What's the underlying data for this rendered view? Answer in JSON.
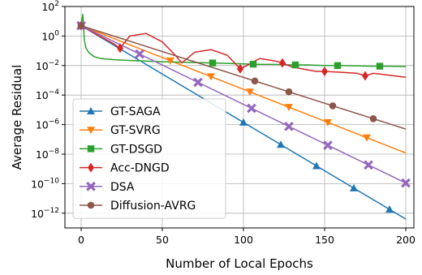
{
  "chart_data": {
    "type": "line",
    "xlabel": "Number of Local Epochs",
    "ylabel": "Average Residual",
    "xlim": [
      -10,
      205
    ],
    "ylim_log10": [
      -13,
      2
    ],
    "yscale": "log",
    "grid": true,
    "legend_position": "lower-left",
    "x_ticks": [
      0,
      50,
      100,
      150,
      200
    ],
    "y_ticks": [
      {
        "base": "10",
        "exp": "2",
        "value": 100
      },
      {
        "base": "10",
        "exp": "0",
        "value": 1
      },
      {
        "base": "10",
        "exp": "−2",
        "value": 0.01
      },
      {
        "base": "10",
        "exp": "−4",
        "value": 0.0001
      },
      {
        "base": "10",
        "exp": "−6",
        "value": 1e-06
      },
      {
        "base": "10",
        "exp": "−8",
        "value": 1e-08
      },
      {
        "base": "10",
        "exp": "−10",
        "value": 1e-10
      },
      {
        "base": "10",
        "exp": "−12",
        "value": 1e-12
      }
    ],
    "series": [
      {
        "name": "GT-SAGA",
        "color": "#1f77b4",
        "marker": "triangle-up",
        "x": [
          0,
          200
        ],
        "y": [
          5,
          4e-13
        ],
        "marker_x": [
          0,
          100,
          123,
          145,
          168,
          190
        ]
      },
      {
        "name": "GT-SVRG",
        "color": "#ff7f0e",
        "marker": "triangle-down",
        "x": [
          0,
          200
        ],
        "y": [
          5,
          1.2e-08
        ],
        "marker_x": [
          0,
          55,
          80,
          104,
          128,
          152,
          176
        ]
      },
      {
        "name": "GT-DSGD",
        "color": "#2ca02c",
        "marker": "square",
        "x": [
          0,
          1,
          2,
          3,
          5,
          8,
          12,
          20,
          30,
          40,
          50,
          60,
          70,
          80,
          90,
          100,
          110,
          120,
          130,
          140,
          150,
          160,
          170,
          180,
          190,
          200
        ],
        "y": [
          5,
          30,
          0.5,
          0.15,
          0.07,
          0.04,
          0.03,
          0.025,
          0.022,
          0.02,
          0.018,
          0.017,
          0.016,
          0.015,
          0.014,
          0.013,
          0.012,
          0.012,
          0.011,
          0.011,
          0.01,
          0.01,
          0.0095,
          0.009,
          0.009,
          0.0085
        ],
        "marker_x": [
          0,
          81,
          106,
          132,
          158,
          184
        ]
      },
      {
        "name": "Acc-DNGD",
        "color": "#d62728",
        "marker": "diamond",
        "x": [
          0,
          10,
          20,
          24,
          30,
          40,
          50,
          58,
          62,
          70,
          80,
          90,
          98,
          102,
          110,
          120,
          124,
          130,
          140,
          145,
          150,
          160,
          170,
          175,
          180,
          190,
          200
        ],
        "y": [
          5,
          1.2,
          0.3,
          0.15,
          1.0,
          1.5,
          0.4,
          0.05,
          0.015,
          0.08,
          0.12,
          0.05,
          0.006,
          0.01,
          0.03,
          0.02,
          0.015,
          0.008,
          0.005,
          0.004,
          0.004,
          0.0035,
          0.003,
          0.002,
          0.003,
          0.0022,
          0.0016
        ],
        "marker_x": [
          0,
          24,
          98,
          124,
          150,
          175
        ]
      },
      {
        "name": "DSA",
        "color": "#9467bd",
        "marker": "x-thick",
        "x": [
          0,
          200
        ],
        "y": [
          5,
          1.1e-10
        ],
        "marker_x": [
          0,
          36,
          72,
          105,
          128,
          152,
          177,
          200
        ]
      },
      {
        "name": "Diffusion-AVRG",
        "color": "#8c564b",
        "marker": "circle",
        "x": [
          0,
          200
        ],
        "y": [
          5,
          5e-07
        ],
        "marker_x": [
          0,
          107,
          128,
          155,
          180
        ]
      }
    ]
  }
}
